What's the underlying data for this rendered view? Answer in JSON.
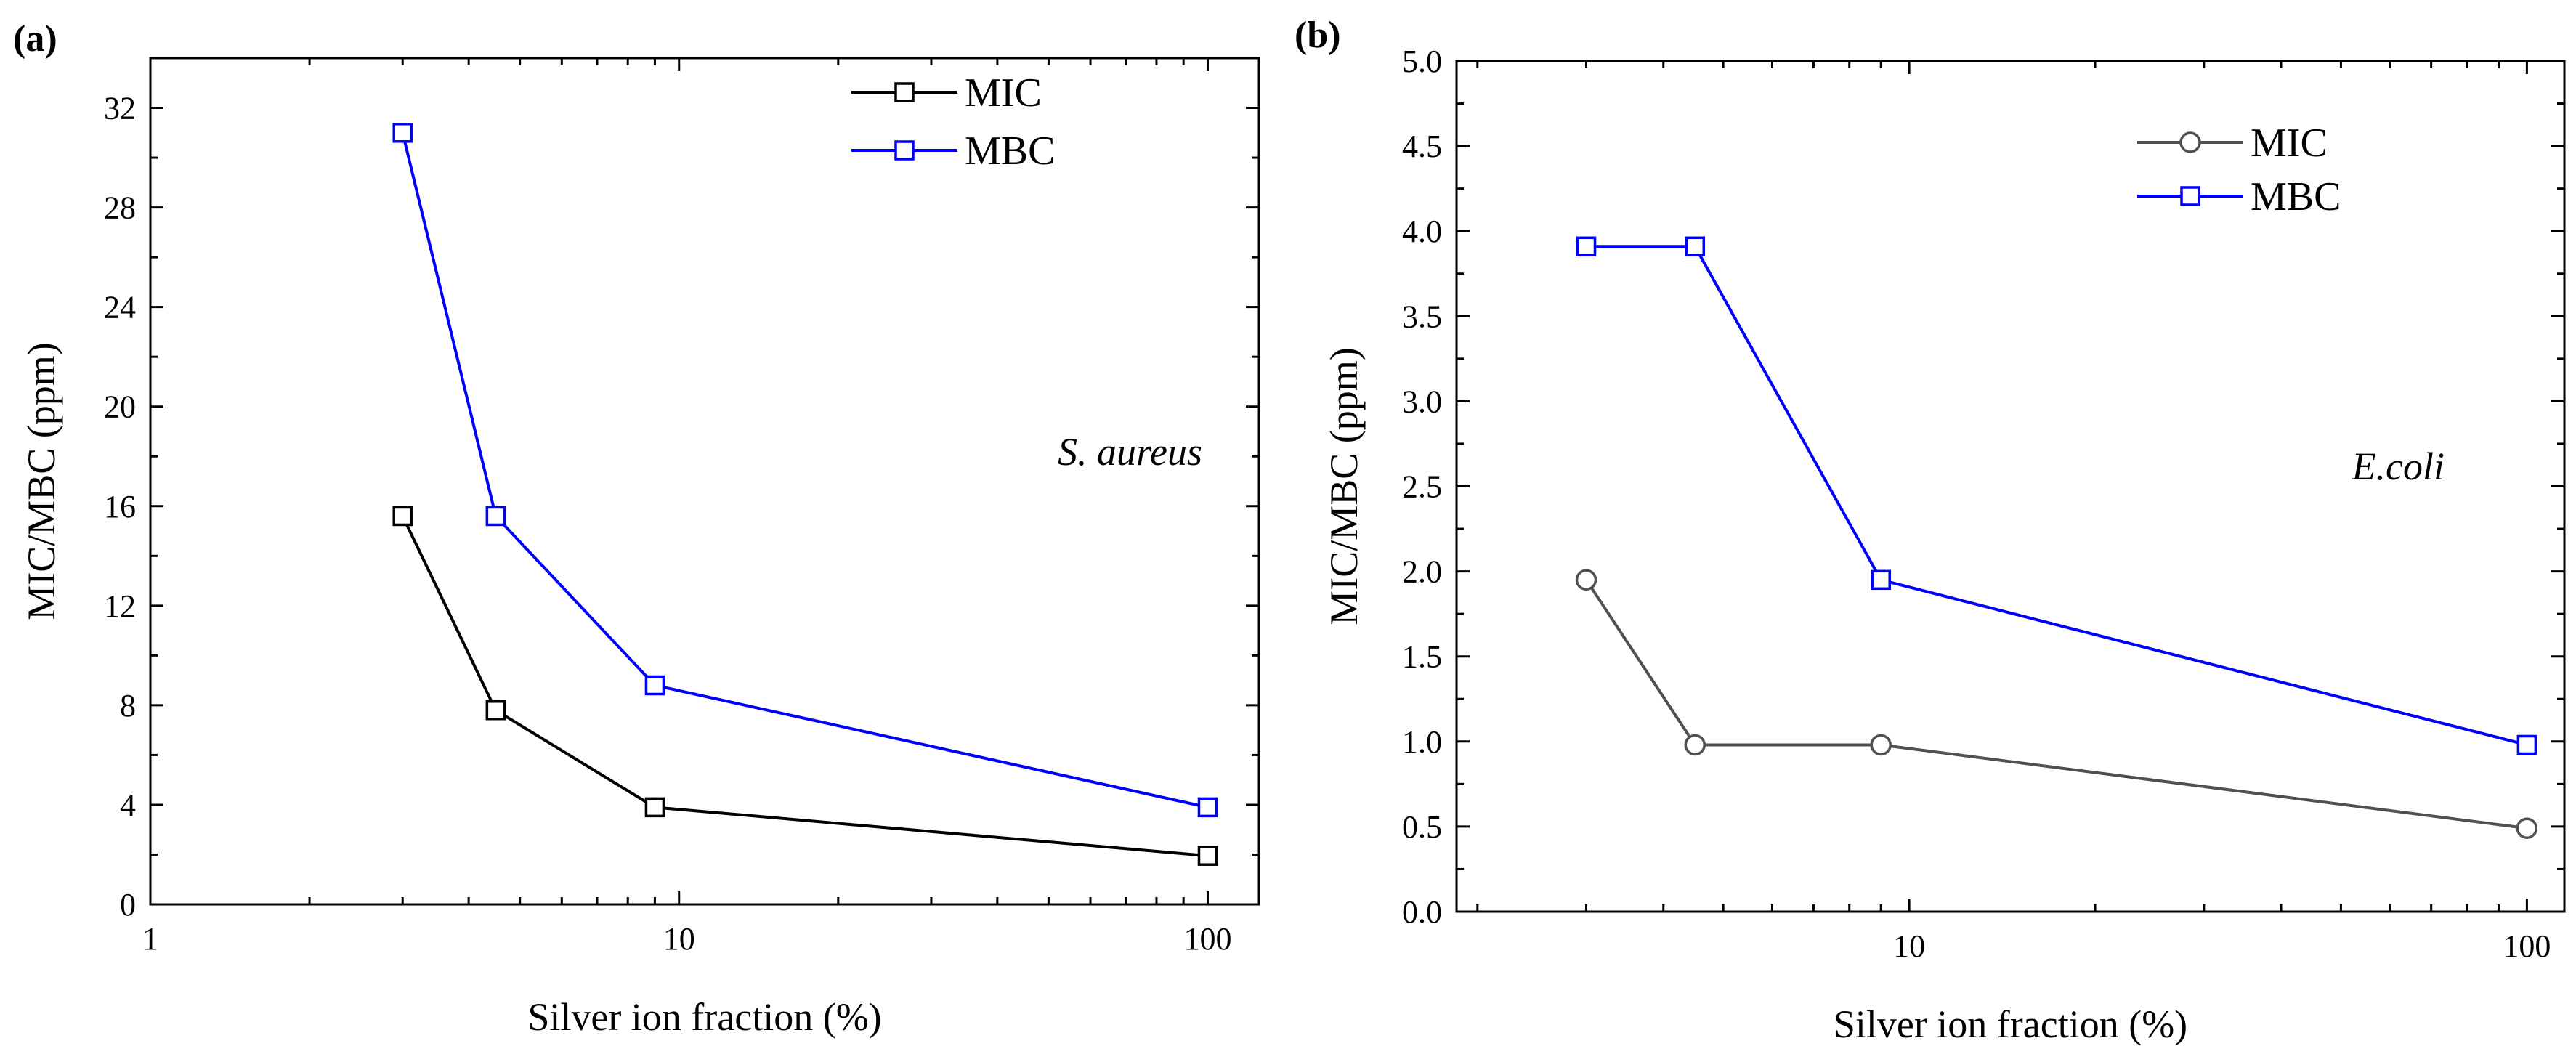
{
  "chart_data": [
    {
      "type": "line",
      "panel_label": "(a)",
      "title": "",
      "xlabel": "Silver ion fraction (%)",
      "ylabel": "MIC/MBC (ppm)",
      "xscale": "log",
      "xlim": [
        1,
        125
      ],
      "ylim": [
        0,
        34
      ],
      "xticks": [
        1,
        10,
        100
      ],
      "xtick_labels": [
        "1",
        "10",
        "100"
      ],
      "yticks": [
        0,
        4,
        8,
        12,
        16,
        20,
        24,
        28,
        32
      ],
      "ytick_labels": [
        "0",
        "4",
        "8",
        "12",
        "16",
        "20",
        "24",
        "28",
        "32"
      ],
      "annotation": "S. aureus",
      "legend_position": "top-right",
      "series": [
        {
          "name": "MIC",
          "marker": "square",
          "color": "#000000",
          "x": [
            3,
            4.5,
            9,
            100
          ],
          "y": [
            15.6,
            7.8,
            3.9,
            1.95
          ]
        },
        {
          "name": "MBC",
          "marker": "square",
          "color": "#0000ff",
          "x": [
            3,
            4.5,
            9,
            100
          ],
          "y": [
            31.0,
            15.6,
            8.8,
            3.9
          ]
        }
      ]
    },
    {
      "type": "line",
      "panel_label": "(b)",
      "title": "",
      "xlabel": "Silver ion fraction (%)",
      "ylabel": "MIC/MBC (ppm)",
      "xscale": "log",
      "xlim": [
        1.85,
        115
      ],
      "ylim": [
        0,
        5
      ],
      "xticks": [
        10,
        100
      ],
      "xtick_labels": [
        "10",
        "100"
      ],
      "yticks": [
        0,
        0.5,
        1,
        1.5,
        2,
        2.5,
        3,
        3.5,
        4,
        4.5,
        5
      ],
      "ytick_labels": [
        "0.0",
        "0.5",
        "1.0",
        "1.5",
        "2.0",
        "2.5",
        "3.0",
        "3.5",
        "4.0",
        "4.5",
        "5.0"
      ],
      "annotation": "E.coli",
      "legend_position": "top-right",
      "series": [
        {
          "name": "MIC",
          "marker": "circle",
          "color": "#505050",
          "x": [
            3,
            4.5,
            9,
            100
          ],
          "y": [
            1.95,
            0.98,
            0.98,
            0.49
          ]
        },
        {
          "name": "MBC",
          "marker": "square",
          "color": "#0000ff",
          "x": [
            3,
            4.5,
            9,
            100
          ],
          "y": [
            3.91,
            3.91,
            1.95,
            0.98
          ]
        }
      ]
    }
  ]
}
